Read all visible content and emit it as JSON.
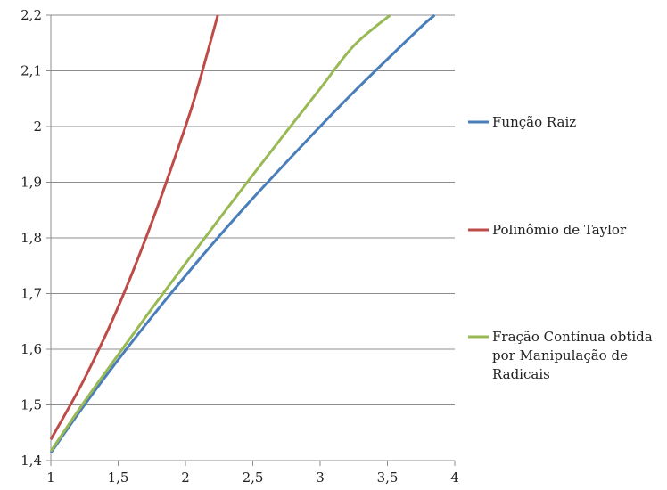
{
  "chart_data": {
    "type": "line",
    "title": "",
    "xlabel": "",
    "ylabel": "",
    "xlim": [
      1,
      4
    ],
    "ylim": [
      1.4,
      2.2
    ],
    "x_ticks": [
      "1",
      "1,5",
      "2",
      "2,5",
      "3",
      "3,5",
      "4"
    ],
    "y_ticks": [
      "1,4",
      "1,5",
      "1,6",
      "1,7",
      "1,8",
      "1,9",
      "2",
      "2,1",
      "2,2"
    ],
    "grid": "horizontal",
    "legend_position": "right",
    "series": [
      {
        "name": "Função Raiz",
        "color": "#4a7ebb",
        "x": [
          1,
          1.25,
          1.5,
          1.75,
          2,
          2.25,
          2.5,
          2.75,
          3,
          3.25,
          3.5,
          3.75,
          3.85
        ],
        "y": [
          1.414,
          1.5,
          1.581,
          1.658,
          1.732,
          1.803,
          1.871,
          1.936,
          2.0,
          2.062,
          2.121,
          2.179,
          2.2
        ]
      },
      {
        "name": "Polinômio de Taylor",
        "color": "#be4b48",
        "x": [
          1,
          1.25,
          1.5,
          1.75,
          2,
          2.1,
          2.24
        ],
        "y": [
          1.438,
          1.547,
          1.676,
          1.828,
          2.0,
          2.078,
          2.2
        ]
      },
      {
        "name": [
          "Fração Contínua obtida",
          "por Manipulação de",
          "Radicais"
        ],
        "color": "#98b954",
        "x": [
          1,
          1.25,
          1.5,
          1.75,
          2,
          2.25,
          2.5,
          2.75,
          3,
          3.25,
          3.52
        ],
        "y": [
          1.417,
          1.506,
          1.59,
          1.673,
          1.754,
          1.834,
          1.913,
          1.991,
          2.068,
          2.145,
          2.2
        ]
      }
    ]
  }
}
